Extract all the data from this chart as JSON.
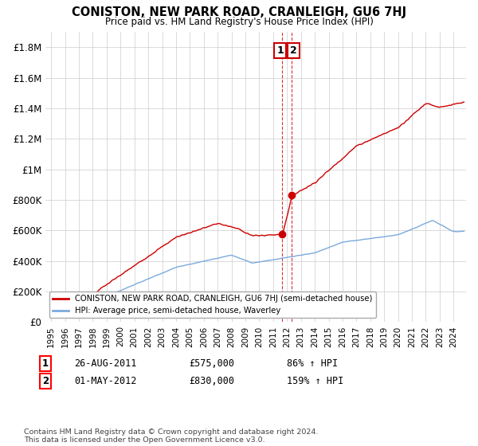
{
  "title": "CONISTON, NEW PARK ROAD, CRANLEIGH, GU6 7HJ",
  "subtitle": "Price paid vs. HM Land Registry's House Price Index (HPI)",
  "ylim": [
    0,
    1900000
  ],
  "yticks": [
    0,
    200000,
    400000,
    600000,
    800000,
    1000000,
    1200000,
    1400000,
    1600000,
    1800000
  ],
  "ytick_labels": [
    "£0",
    "£200K",
    "£400K",
    "£600K",
    "£800K",
    "£1M",
    "£1.2M",
    "£1.4M",
    "£1.6M",
    "£1.8M"
  ],
  "hpi_color": "#7aaadd",
  "price_color": "#cc0000",
  "annotation_color": "#cc0000",
  "bg_color": "#ffffff",
  "grid_color": "#cccccc",
  "transaction1_date": "26-AUG-2011",
  "transaction1_price": "£575,000",
  "transaction1_hpi": "86% ↑ HPI",
  "transaction2_date": "01-MAY-2012",
  "transaction2_price": "£830,000",
  "transaction2_hpi": "159% ↑ HPI",
  "legend_line1": "CONISTON, NEW PARK ROAD, CRANLEIGH, GU6 7HJ (semi-detached house)",
  "legend_line2": "HPI: Average price, semi-detached house, Waverley",
  "footer": "Contains HM Land Registry data © Crown copyright and database right 2024.\nThis data is licensed under the Open Government Licence v3.0.",
  "transaction1_x": 2011.65,
  "transaction1_y": 575000,
  "transaction2_x": 2012.33,
  "transaction2_y": 830000,
  "xlim_left": 1994.6,
  "xlim_right": 2024.9
}
